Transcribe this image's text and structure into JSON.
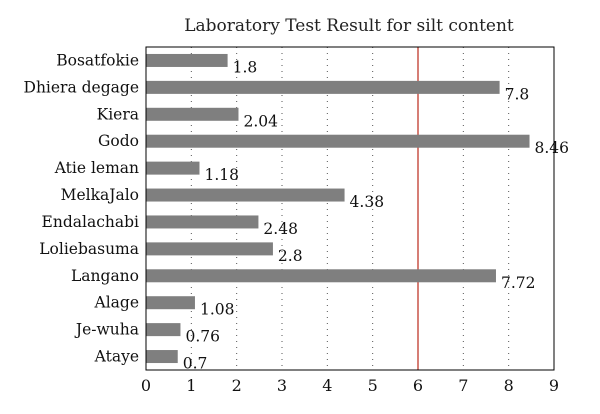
{
  "chart_data": {
    "type": "bar",
    "orientation": "horizontal",
    "title": "Laboratory Test Result for silt content",
    "xlabel": "",
    "ylabel": "",
    "categories": [
      "Bosatfokie",
      "Dhiera degage",
      "Kiera",
      "Godo",
      "Atie leman",
      "MelkaJalo",
      "Endalachabi",
      "Loliebasuma",
      "Langano",
      "Alage",
      "Je-wuha",
      "Ataye"
    ],
    "values": [
      1.8,
      7.8,
      2.04,
      8.46,
      1.18,
      4.38,
      2.48,
      2.8,
      7.72,
      1.08,
      0.76,
      0.7
    ],
    "value_labels": [
      "1.8",
      "7.8",
      "2.04",
      "8.46",
      "1.18",
      "4.38",
      "2.48",
      "2.8",
      "7.72",
      "1.08",
      "0.76",
      "0.7"
    ],
    "xlim": [
      0,
      9
    ],
    "xticks": [
      "0",
      "1",
      "2",
      "3",
      "4",
      "5",
      "6",
      "7",
      "8",
      "9"
    ],
    "reference_line": 6,
    "grid": "vertical dotted",
    "colors": {
      "bar": "#7f7f7f",
      "reference_line": "#c0392b",
      "axis": "#000000",
      "grid": "#555555"
    }
  }
}
